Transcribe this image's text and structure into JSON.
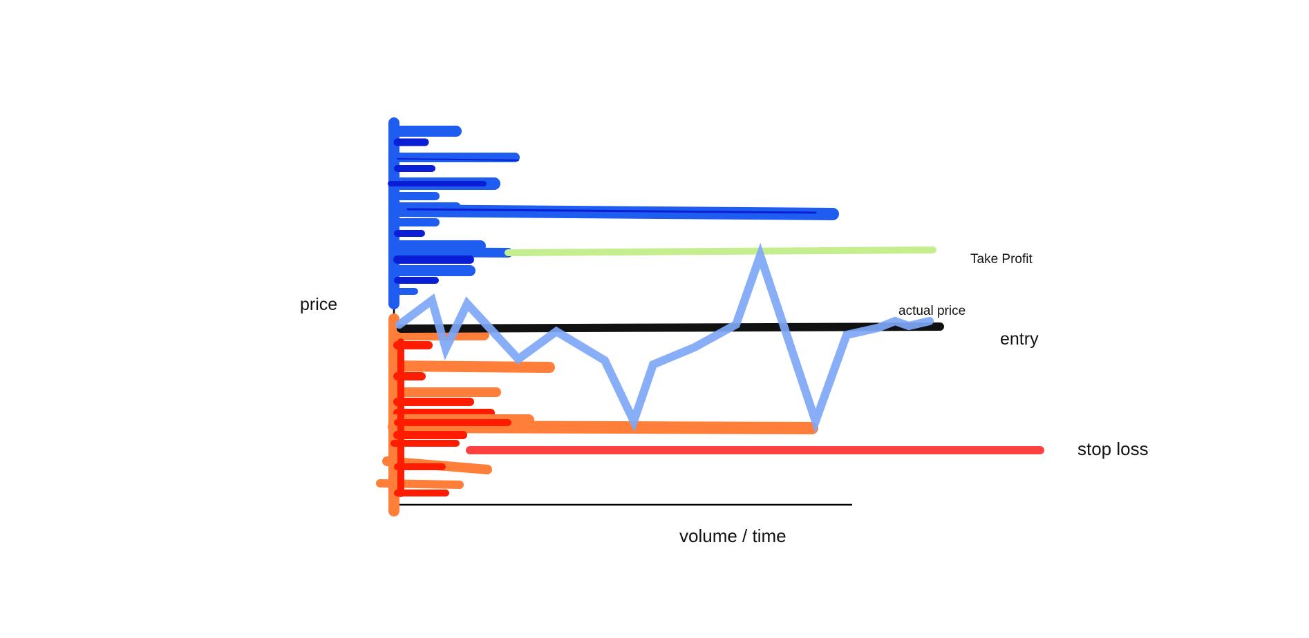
{
  "labels": {
    "y_axis": "price",
    "x_axis": "volume / time",
    "take_profit": "Take Profit",
    "actual_price": "actual price",
    "entry": "entry",
    "stop_loss": "stop loss"
  },
  "colors": {
    "axis": "#000000",
    "buy_volume": "#1f5cf0",
    "buy_volume_dark": "#0a1ed6",
    "sell_volume": "#ff7f3a",
    "sell_volume_dark": "#ff1c00",
    "take_profit_line": "#c5ee8f",
    "entry_line": "#111111",
    "stop_loss_line": "#ff4040",
    "price_path": "#7da7f5"
  }
}
